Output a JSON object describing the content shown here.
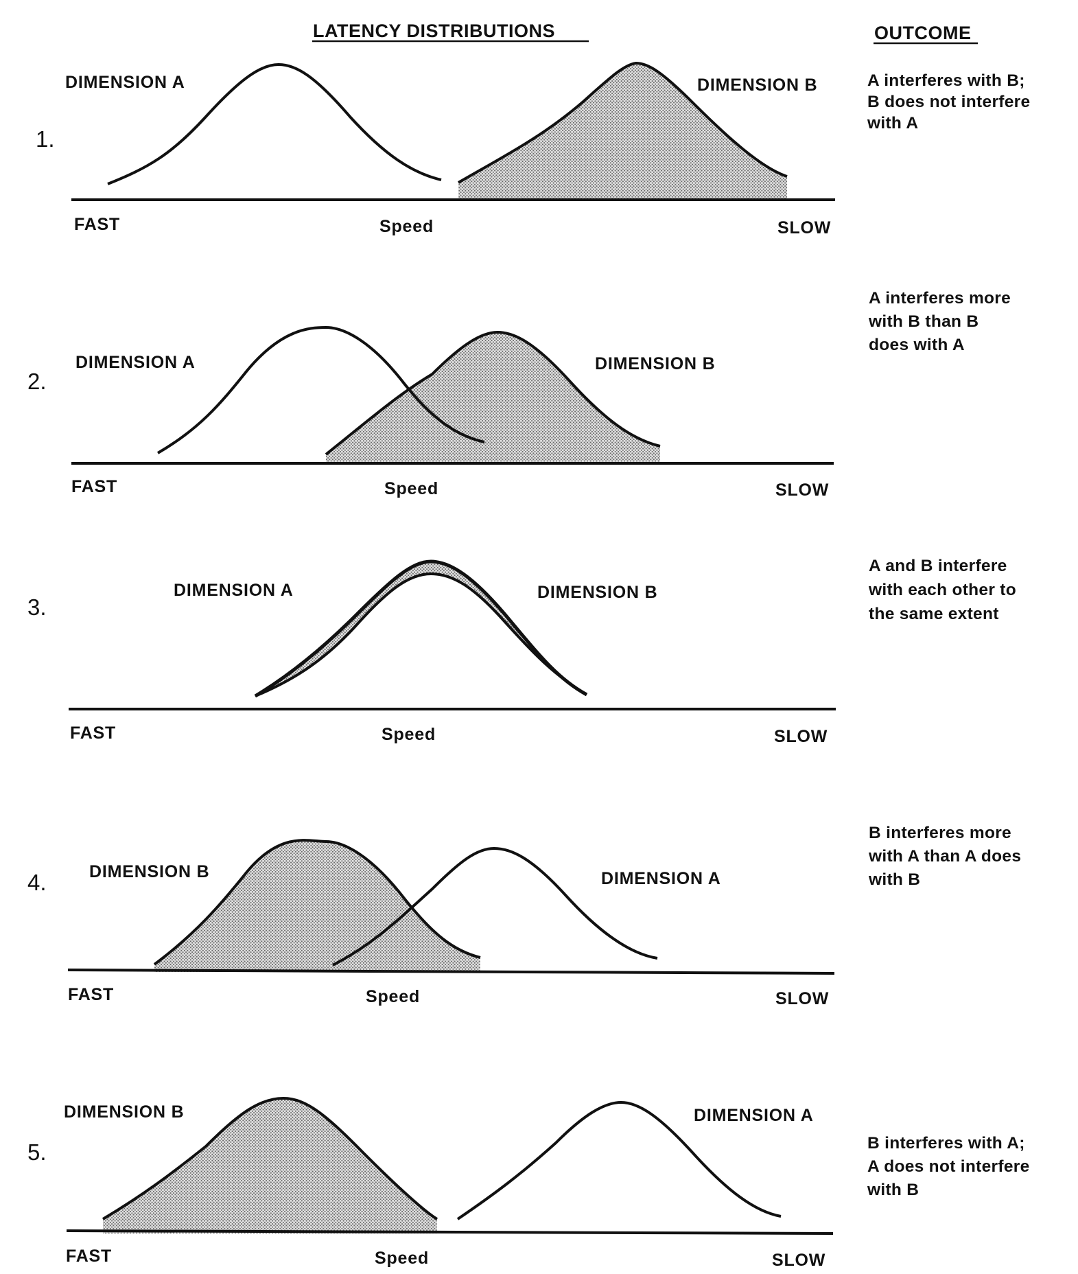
{
  "header": {
    "left": "LATENCY DISTRIBUTIONS",
    "right": "OUTCOME"
  },
  "axis": {
    "fast": "FAST",
    "speed": "Speed",
    "slow": "SLOW"
  },
  "colors": {
    "ink": "#111111",
    "shade_dot": "#6a6a6a",
    "shade_bg": "#e3e3e3"
  },
  "panels": [
    {
      "number": "1.",
      "label_left": "DIMENSION A",
      "label_right": "DIMENSION B",
      "shaded": "right",
      "outcome": [
        "A interferes with B;",
        "B does not interfere",
        "with A"
      ]
    },
    {
      "number": "2.",
      "label_left": "DIMENSION A",
      "label_right": "DIMENSION B",
      "shaded": "right",
      "outcome": [
        "A interferes more",
        "with B than B",
        "does with A"
      ]
    },
    {
      "number": "3.",
      "label_left": "DIMENSION A",
      "label_right": "DIMENSION B",
      "shaded": "band",
      "outcome": [
        "A and B interfere",
        "with each other to",
        "the same extent"
      ]
    },
    {
      "number": "4.",
      "label_left": "DIMENSION B",
      "label_right": "DIMENSION A",
      "shaded": "left",
      "outcome": [
        "B interferes more",
        "with A than A does",
        "with B"
      ]
    },
    {
      "number": "5.",
      "label_left": "DIMENSION B",
      "label_right": "DIMENSION A",
      "shaded": "left",
      "outcome": [
        "B interferes with A;",
        "A does not interfere",
        "with B"
      ]
    }
  ]
}
